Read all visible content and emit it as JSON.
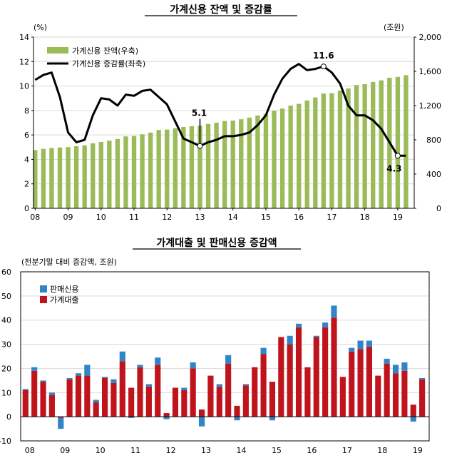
{
  "chart_data": [
    {
      "type": "bar+line",
      "title": "가계신용 잔액 및 증감률",
      "left_unit": "(%)",
      "right_unit": "(조원)",
      "left_ylim": [
        0,
        14
      ],
      "left_ticks": [
        "0",
        "2",
        "4",
        "6",
        "8",
        "10",
        "12",
        "14"
      ],
      "right_ylim": [
        0,
        2000
      ],
      "right_ticks": [
        "0",
        "400",
        "800",
        "1,200",
        "1,600",
        "2,000"
      ],
      "x_labels": [
        "08",
        "09",
        "10",
        "11",
        "12",
        "13",
        "14",
        "15",
        "16",
        "17",
        "18",
        "19"
      ],
      "legend": [
        {
          "name": "가계신용 잔액(우축)",
          "color": "#9bbb59"
        },
        {
          "name": "가계신용 증감률(좌축)",
          "color": "#000000"
        }
      ],
      "annotations": [
        {
          "label": "5.1",
          "x": 2013.0,
          "y": 5.1
        },
        {
          "label": "11.6",
          "x": 2016.75,
          "y": 11.6
        },
        {
          "label": "4.3",
          "x": 2019.0,
          "y": 4.3
        }
      ],
      "balance_x": [
        2008.0,
        2008.25,
        2008.5,
        2008.75,
        2009.0,
        2009.25,
        2009.5,
        2009.75,
        2010.0,
        2010.25,
        2010.5,
        2010.75,
        2011.0,
        2011.25,
        2011.5,
        2011.75,
        2012.0,
        2012.25,
        2012.5,
        2012.75,
        2013.0,
        2013.25,
        2013.5,
        2013.75,
        2014.0,
        2014.25,
        2014.5,
        2014.75,
        2015.0,
        2015.25,
        2015.5,
        2015.75,
        2016.0,
        2016.25,
        2016.5,
        2016.75,
        2017.0,
        2017.25,
        2017.5,
        2017.75,
        2018.0,
        2018.25,
        2018.5,
        2018.75,
        2019.0,
        2019.25
      ],
      "balance": [
        680,
        695,
        705,
        710,
        715,
        725,
        735,
        760,
        775,
        790,
        810,
        840,
        845,
        865,
        885,
        915,
        920,
        935,
        950,
        960,
        965,
        985,
        1000,
        1020,
        1025,
        1040,
        1060,
        1085,
        1100,
        1140,
        1165,
        1200,
        1220,
        1260,
        1295,
        1340,
        1345,
        1375,
        1400,
        1440,
        1450,
        1475,
        1495,
        1525,
        1535,
        1555
      ],
      "growth_x": [
        2008.0,
        2008.25,
        2008.5,
        2008.75,
        2009.0,
        2009.25,
        2009.5,
        2009.75,
        2010.0,
        2010.25,
        2010.5,
        2010.75,
        2011.0,
        2011.25,
        2011.5,
        2011.75,
        2012.0,
        2012.25,
        2012.5,
        2012.75,
        2013.0,
        2013.25,
        2013.5,
        2013.75,
        2014.0,
        2014.25,
        2014.5,
        2014.75,
        2015.0,
        2015.25,
        2015.5,
        2015.75,
        2016.0,
        2016.25,
        2016.5,
        2016.75,
        2017.0,
        2017.25,
        2017.5,
        2017.75,
        2018.0,
        2018.25,
        2018.5,
        2018.75,
        2019.0,
        2019.25
      ],
      "growth": [
        10.5,
        10.9,
        11.1,
        9.1,
        6.2,
        5.4,
        5.6,
        7.6,
        9.0,
        8.9,
        8.4,
        9.3,
        9.2,
        9.6,
        9.7,
        9.1,
        8.5,
        7.1,
        5.7,
        5.4,
        5.1,
        5.4,
        5.6,
        5.9,
        5.9,
        6.0,
        6.2,
        6.8,
        7.6,
        9.3,
        10.6,
        11.4,
        11.8,
        11.3,
        11.4,
        11.6,
        11.1,
        10.2,
        8.4,
        7.6,
        7.6,
        7.2,
        6.5,
        5.4,
        4.3,
        4.3
      ]
    },
    {
      "type": "bar",
      "stacked": true,
      "title": "가계대출 및 판매신용 증감액",
      "unit": "(전분기말 대비 증감액, 조원)",
      "ylim": [
        -10,
        60
      ],
      "y_ticks": [
        "-10",
        "0",
        "10",
        "20",
        "30",
        "40",
        "50",
        "60"
      ],
      "x_labels": [
        "08",
        "09",
        "10",
        "11",
        "12",
        "13",
        "14",
        "15",
        "16",
        "17",
        "18",
        "19"
      ],
      "legend": [
        {
          "name": "판매신용",
          "color": "#2e86c8"
        },
        {
          "name": "가계대출",
          "color": "#c0141c"
        }
      ],
      "series": [
        {
          "name": "가계대출",
          "values": [
            11.0,
            19.0,
            14.5,
            9.0,
            -0.5,
            15.5,
            17.0,
            17.0,
            6.0,
            16.0,
            14.0,
            23.0,
            12.0,
            20.5,
            12.5,
            21.5,
            1.5,
            12.0,
            11.0,
            20.0,
            3.0,
            17.0,
            12.5,
            22.0,
            4.5,
            13.0,
            20.5,
            26.0,
            14.5,
            33.0,
            30.0,
            37.0,
            20.5,
            33.0,
            37.0,
            41.0,
            16.5,
            27.0,
            28.0,
            29.0,
            17.0,
            22.0,
            18.0,
            19.0,
            5.0,
            15.5
          ]
        },
        {
          "name": "판매신용",
          "values": [
            0.5,
            1.5,
            0.5,
            1.0,
            -4.5,
            0.5,
            1.0,
            4.5,
            1.0,
            0.5,
            1.5,
            4.0,
            -0.5,
            1.0,
            1.0,
            3.0,
            -1.0,
            0.0,
            1.0,
            2.5,
            -4.0,
            0.0,
            1.0,
            3.5,
            -1.5,
            0.5,
            0.0,
            2.5,
            -1.5,
            0.0,
            3.5,
            1.5,
            0.0,
            0.5,
            2.0,
            5.0,
            0.0,
            1.5,
            3.5,
            2.5,
            0.0,
            2.0,
            3.5,
            3.5,
            -2.0,
            0.5
          ]
        }
      ]
    }
  ]
}
